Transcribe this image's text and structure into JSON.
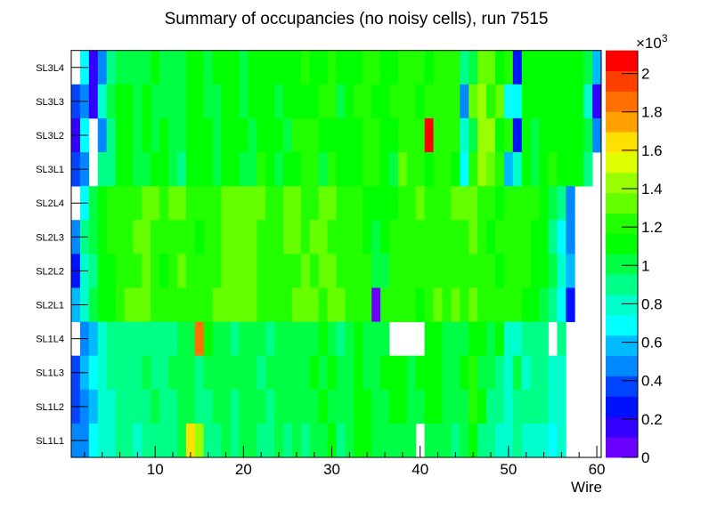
{
  "chart_data": {
    "type": "heatmap",
    "title": "Summary of occupancies (no noisy cells), run 7515",
    "xlabel": "Wire",
    "ylabel": "",
    "xlim": [
      0.5,
      60.5
    ],
    "x_ticks": [
      "10",
      "20",
      "30",
      "40",
      "50",
      "60"
    ],
    "y_categories": [
      "SL1L1",
      "SL1L2",
      "SL1L3",
      "SL1L4",
      "SL2L1",
      "SL2L2",
      "SL2L3",
      "SL2L4",
      "SL3L1",
      "SL3L2",
      "SL3L3",
      "SL3L4"
    ],
    "z_range": [
      0,
      2120
    ],
    "colorbar": {
      "exponent_label": "×10",
      "exponent_power": "3",
      "tick_labels": [
        "0",
        "0.2",
        "0.4",
        "0.6",
        "0.8",
        "1",
        "1.2",
        "1.4",
        "1.6",
        "1.8",
        "2"
      ],
      "palette": [
        "#6a00ff",
        "#3300ff",
        "#0011ff",
        "#0044ff",
        "#0088ff",
        "#00bbff",
        "#00ffff",
        "#00ffcc",
        "#00ff88",
        "#00ff44",
        "#00ff00",
        "#22ff00",
        "#66ff00",
        "#99ff00",
        "#ddff00",
        "#ffe000",
        "#ffa000",
        "#ff7000",
        "#ff4000",
        "#ff0000"
      ]
    },
    "rows_top_to_bottom": [
      {
        "label": "SL3L4",
        "values": [
          null,
          690,
          160,
          480,
          910,
          1010,
          1010,
          1010,
          1010,
          1120,
          1010,
          1010,
          1010,
          1120,
          1120,
          1010,
          1120,
          1120,
          1120,
          1010,
          1120,
          1120,
          1120,
          1120,
          1120,
          1120,
          1230,
          1120,
          1120,
          1230,
          1120,
          1120,
          1120,
          1230,
          1230,
          1120,
          1120,
          1230,
          1230,
          1230,
          1120,
          1230,
          1230,
          1230,
          910,
          1010,
          1330,
          1330,
          1120,
          1230,
          270,
          1120,
          1120,
          1120,
          1120,
          1120,
          1120,
          1120,
          1010,
          590
        ]
      },
      {
        "label": "SL3L3",
        "values": [
          370,
          480,
          160,
          800,
          1010,
          1120,
          1120,
          1010,
          1120,
          1010,
          1010,
          1010,
          1010,
          1120,
          1120,
          1010,
          1010,
          1120,
          1120,
          1010,
          1120,
          1120,
          1120,
          1010,
          1120,
          1120,
          1120,
          1120,
          1230,
          1230,
          1010,
          1120,
          1230,
          1230,
          1120,
          1120,
          1230,
          1230,
          1230,
          1120,
          1230,
          1230,
          1230,
          1230,
          480,
          1330,
          1440,
          1230,
          1330,
          690,
          690,
          1120,
          1120,
          1120,
          1120,
          1120,
          1120,
          1120,
          800,
          160
        ]
      },
      {
        "label": "SL3L2",
        "values": [
          160,
          690,
          null,
          480,
          910,
          1120,
          1120,
          1010,
          1120,
          1010,
          1120,
          1010,
          1010,
          1120,
          1120,
          1120,
          1010,
          1120,
          1120,
          1120,
          1010,
          1120,
          1120,
          1120,
          1010,
          1230,
          1230,
          1230,
          1120,
          1120,
          1120,
          1120,
          1120,
          1230,
          1230,
          1120,
          1120,
          1230,
          1230,
          1230,
          2080,
          1230,
          1230,
          1230,
          800,
          1010,
          1440,
          1440,
          1120,
          1230,
          270,
          1120,
          1010,
          1120,
          1120,
          1120,
          1120,
          1120,
          1010,
          480
        ]
      },
      {
        "label": "SL3L1",
        "values": [
          370,
          480,
          null,
          910,
          910,
          1120,
          1120,
          1010,
          1010,
          1120,
          1120,
          1010,
          910,
          1120,
          1120,
          1120,
          1010,
          1120,
          1120,
          1010,
          1010,
          1230,
          1120,
          1010,
          1120,
          1120,
          1230,
          1230,
          1010,
          1230,
          1120,
          1120,
          1120,
          1230,
          1230,
          1120,
          1010,
          1330,
          1230,
          1230,
          1120,
          1230,
          1230,
          1120,
          690,
          1230,
          1440,
          1330,
          1230,
          590,
          800,
          1120,
          1010,
          1120,
          1230,
          1120,
          1120,
          1120,
          910,
          null
        ]
      },
      {
        "label": "SL2L4",
        "values": [
          null,
          690,
          1010,
          1120,
          1230,
          1230,
          1230,
          1230,
          1330,
          1330,
          1230,
          1330,
          1330,
          1230,
          1230,
          1230,
          1230,
          1330,
          1330,
          1330,
          1330,
          1330,
          1230,
          1230,
          1330,
          1330,
          1230,
          1230,
          1330,
          1330,
          1230,
          1230,
          1230,
          1120,
          1120,
          1120,
          1120,
          1230,
          1230,
          1330,
          1230,
          1230,
          1230,
          1330,
          1330,
          1330,
          1230,
          1230,
          1120,
          1230,
          1230,
          1230,
          1230,
          1120,
          1010,
          910,
          480,
          null,
          null,
          null
        ]
      },
      {
        "label": "SL2L3",
        "values": [
          480,
          910,
          1010,
          1120,
          1230,
          1230,
          1230,
          1330,
          1330,
          1230,
          1230,
          1230,
          1230,
          1230,
          1120,
          1230,
          1230,
          1330,
          1330,
          1330,
          1330,
          1230,
          1230,
          1230,
          1330,
          1330,
          1230,
          1330,
          1330,
          1230,
          1230,
          1230,
          1230,
          1120,
          1010,
          1120,
          1230,
          1230,
          1230,
          1230,
          1230,
          1230,
          1230,
          1230,
          1230,
          1330,
          1230,
          1120,
          1230,
          1230,
          1230,
          1230,
          1120,
          1120,
          910,
          690,
          480,
          null,
          null,
          null
        ]
      },
      {
        "label": "SL2L2",
        "values": [
          270,
          800,
          910,
          1120,
          1120,
          1230,
          1230,
          1230,
          1330,
          1230,
          1120,
          1230,
          1330,
          1230,
          1230,
          1230,
          1230,
          1330,
          1330,
          1330,
          1330,
          1230,
          1230,
          1230,
          1230,
          1230,
          1330,
          1230,
          1330,
          1330,
          1230,
          1230,
          1230,
          1230,
          1010,
          1010,
          1230,
          1230,
          1230,
          1230,
          1230,
          1230,
          1230,
          1230,
          1230,
          1230,
          1230,
          1230,
          1120,
          1230,
          1230,
          1230,
          1120,
          1120,
          1010,
          800,
          590,
          null,
          null,
          null
        ]
      },
      {
        "label": "SL2L1",
        "values": [
          590,
          800,
          1010,
          1120,
          1120,
          1230,
          1330,
          1330,
          1330,
          1230,
          1230,
          1230,
          1230,
          1230,
          1230,
          1230,
          1330,
          1330,
          1330,
          1330,
          1330,
          1230,
          1230,
          1230,
          1230,
          1330,
          1330,
          1330,
          1230,
          1330,
          1330,
          1230,
          1230,
          1230,
          50,
          1230,
          1230,
          1230,
          1230,
          1120,
          1230,
          1330,
          1230,
          1330,
          1230,
          1330,
          1230,
          1230,
          1230,
          1230,
          1230,
          1120,
          1120,
          1010,
          910,
          690,
          270,
          null,
          null,
          null
        ]
      },
      {
        "label": "SL1L4",
        "values": [
          null,
          480,
          590,
          800,
          910,
          910,
          910,
          910,
          910,
          910,
          910,
          910,
          1010,
          1010,
          1870,
          1120,
          1010,
          1010,
          910,
          1010,
          1010,
          1010,
          910,
          1010,
          1010,
          1010,
          1010,
          1010,
          1120,
          1010,
          910,
          1010,
          1120,
          1010,
          1010,
          1010,
          null,
          null,
          null,
          null,
          1120,
          1120,
          1010,
          1010,
          1010,
          1120,
          1120,
          1010,
          1120,
          800,
          800,
          910,
          910,
          910,
          null,
          910,
          null,
          null,
          null,
          null
        ]
      },
      {
        "label": "SL1L3",
        "values": [
          370,
          590,
          690,
          800,
          910,
          910,
          910,
          910,
          1010,
          910,
          910,
          1010,
          1010,
          1010,
          910,
          1010,
          1010,
          1010,
          1010,
          1010,
          1010,
          910,
          1010,
          1010,
          1010,
          1010,
          1010,
          1120,
          1010,
          1120,
          1010,
          1010,
          1120,
          1010,
          1010,
          1120,
          1120,
          1120,
          1010,
          1120,
          1120,
          1120,
          1010,
          1010,
          1120,
          1230,
          1010,
          1010,
          910,
          800,
          1010,
          800,
          910,
          910,
          800,
          800,
          null,
          null,
          null,
          null
        ]
      },
      {
        "label": "SL1L2",
        "values": [
          370,
          480,
          590,
          800,
          800,
          910,
          910,
          910,
          910,
          1010,
          910,
          910,
          1010,
          1010,
          910,
          910,
          1010,
          1010,
          910,
          1010,
          1010,
          1010,
          910,
          1010,
          1010,
          1010,
          1010,
          1010,
          1120,
          1010,
          1010,
          1010,
          1120,
          1120,
          1010,
          1010,
          1120,
          1120,
          1010,
          1010,
          1120,
          1120,
          1010,
          1010,
          1010,
          1230,
          1120,
          910,
          910,
          800,
          910,
          910,
          910,
          910,
          800,
          800,
          null,
          null,
          null,
          null
        ]
      },
      {
        "label": "SL1L1",
        "values": [
          480,
          480,
          690,
          800,
          800,
          910,
          910,
          800,
          910,
          910,
          910,
          910,
          1010,
          1650,
          1440,
          910,
          910,
          1010,
          910,
          1010,
          1010,
          910,
          910,
          1010,
          910,
          1010,
          910,
          1010,
          1010,
          1120,
          910,
          1010,
          1120,
          1120,
          1010,
          1010,
          1010,
          1010,
          1010,
          null,
          1010,
          1010,
          1010,
          910,
          1010,
          1120,
          910,
          910,
          800,
          800,
          910,
          800,
          800,
          800,
          690,
          800,
          null,
          null,
          null,
          null
        ]
      }
    ]
  }
}
